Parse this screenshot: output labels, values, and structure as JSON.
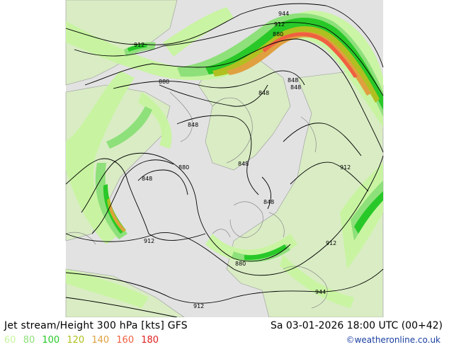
{
  "footer": {
    "title": "Jet stream/Height 300 hPa [kts] GFS",
    "datetime": "Sa 03-01-2026 18:00 UTC (00+42)",
    "credit": "©weatheronline.co.uk"
  },
  "legend": {
    "items": [
      {
        "label": "60",
        "color": "#c8f5a0"
      },
      {
        "label": "80",
        "color": "#8ee07a"
      },
      {
        "label": "100",
        "color": "#28c828"
      },
      {
        "label": "120",
        "color": "#b0c020"
      },
      {
        "label": "140",
        "color": "#e0a040"
      },
      {
        "label": "160",
        "color": "#f06040"
      },
      {
        "label": "180",
        "color": "#e02020"
      }
    ]
  },
  "contour_labels": [
    "944",
    "912",
    "880",
    "912",
    "880",
    "848",
    "848",
    "848",
    "848",
    "848",
    "880",
    "848",
    "848",
    "912",
    "848",
    "912",
    "880",
    "912",
    "944",
    "912"
  ]
}
